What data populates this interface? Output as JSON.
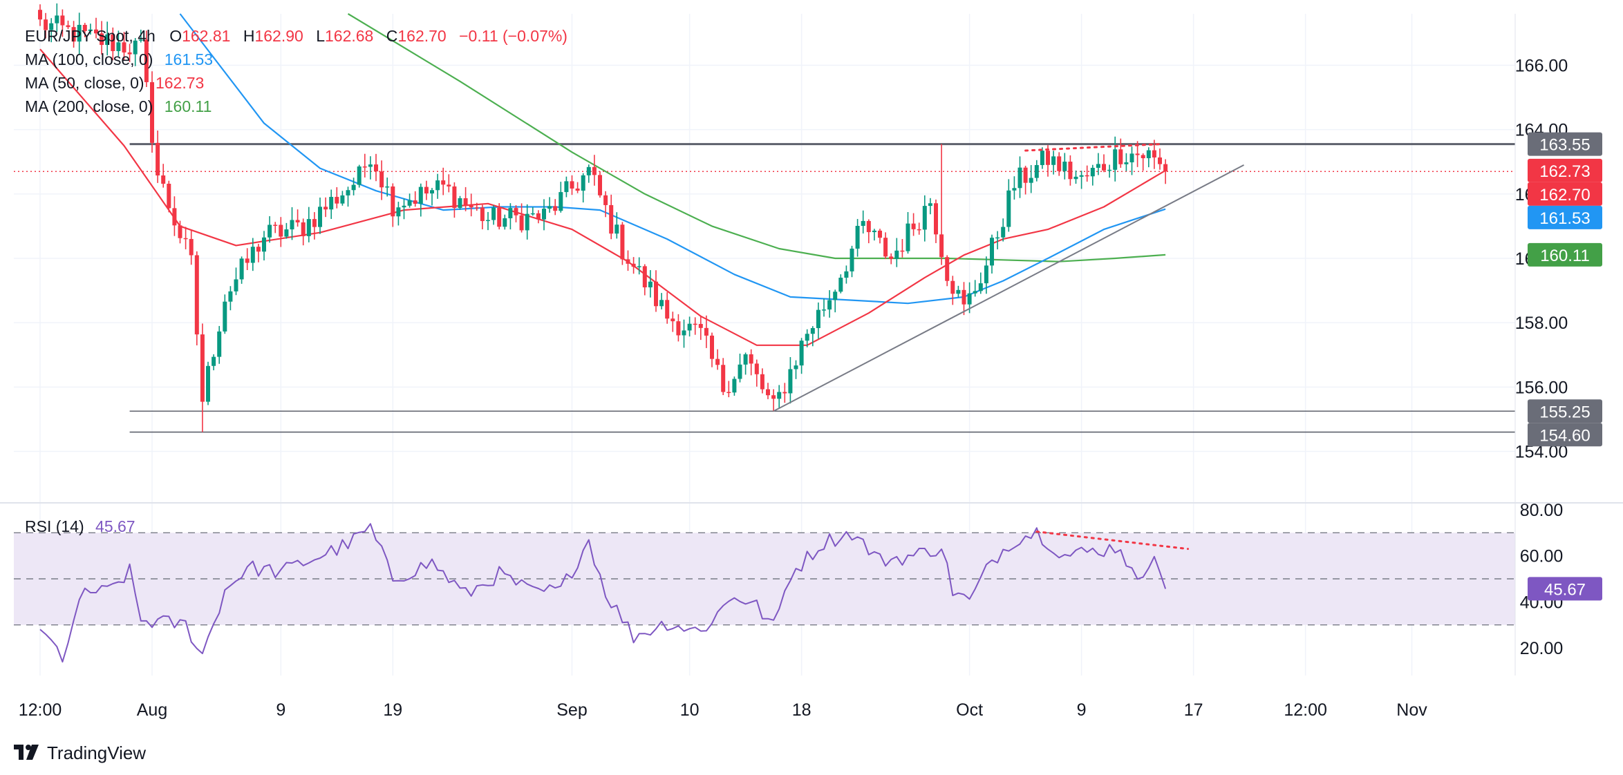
{
  "header": {
    "symbol": "EUR/JPY Spot, 4h",
    "o_label": "O",
    "o_value": "162.81",
    "h_label": "H",
    "h_value": "162.90",
    "l_label": "L",
    "l_value": "162.68",
    "c_label": "C",
    "c_value": "162.70",
    "change": "−0.11 (−0.07%)"
  },
  "legend": {
    "ma100_label": "MA (100, close, 0)",
    "ma100_value": "161.53",
    "ma50_label": "MA (50, close, 0)",
    "ma50_value": "162.73",
    "ma200_label": "MA (200, close, 0)",
    "ma200_value": "160.11",
    "rsi_label": "RSI (14)",
    "rsi_value": "45.67"
  },
  "colors": {
    "up": "#089981",
    "down": "#f23645",
    "ma50": "#f23645",
    "ma100": "#2196f3",
    "ma200": "#4caf50",
    "rsi": "#7e57c2",
    "rsi_band": "#ede7f6",
    "level": "#5d606b",
    "badge_gray": "#6a6d78",
    "badge_red": "#f23645",
    "badge_blue": "#2196f3",
    "badge_green": "#43a047",
    "badge_purple": "#7e57c2"
  },
  "price_badges": [
    {
      "value": "163.55",
      "color": "#6a6d78"
    },
    {
      "value": "162.73",
      "color": "#f23645"
    },
    {
      "value": "162.70",
      "color": "#f23645"
    },
    {
      "value": "161.53",
      "color": "#2196f3"
    },
    {
      "value": "160.11",
      "color": "#43a047"
    },
    {
      "value": "155.25",
      "color": "#6a6d78"
    },
    {
      "value": "154.60",
      "color": "#6a6d78"
    }
  ],
  "rsi_badge": {
    "value": "45.67",
    "color": "#7e57c2"
  },
  "brand": {
    "name": "TradingView",
    "icon": "tradingview-logo-icon"
  },
  "chart_data": {
    "type": "candlestick",
    "title": "EUR/JPY Spot, 4h",
    "x_ticks": [
      {
        "label": "12:00",
        "idx": 0
      },
      {
        "label": "Aug",
        "idx": 20
      },
      {
        "label": "9",
        "idx": 43
      },
      {
        "label": "19",
        "idx": 63
      },
      {
        "label": "Sep",
        "idx": 95
      },
      {
        "label": "10",
        "idx": 116
      },
      {
        "label": "18",
        "idx": 136
      },
      {
        "label": "Oct",
        "idx": 166
      },
      {
        "label": "9",
        "idx": 186
      },
      {
        "label": "17",
        "idx": 206
      },
      {
        "label": "12:00",
        "idx": 226
      },
      {
        "label": "Nov",
        "idx": 245
      }
    ],
    "y_ticks": [
      "166.00",
      "164.00",
      "162.00",
      "160.00",
      "158.00",
      "156.00",
      "154.00"
    ],
    "ylim": [
      152.4,
      167.6
    ],
    "rsi_ticks": [
      "80.00",
      "60.00",
      "40.00",
      "20.00"
    ],
    "rsi_ylim": [
      8,
      80
    ],
    "rsi_levels": [
      30,
      50,
      70
    ],
    "last_index": 201,
    "anchors": [
      {
        "i": 0,
        "p": 167.3
      },
      {
        "i": 10,
        "p": 166.8
      },
      {
        "i": 18,
        "p": 166.5
      },
      {
        "i": 21,
        "p": 162.6
      },
      {
        "i": 27,
        "p": 159.8
      },
      {
        "i": 29,
        "p": 155.6
      },
      {
        "i": 33,
        "p": 158.8
      },
      {
        "i": 40,
        "p": 160.7
      },
      {
        "i": 47,
        "p": 161.0
      },
      {
        "i": 57,
        "p": 162.5
      },
      {
        "i": 59,
        "p": 163.3
      },
      {
        "i": 63,
        "p": 161.7
      },
      {
        "i": 72,
        "p": 162.2
      },
      {
        "i": 80,
        "p": 161.2
      },
      {
        "i": 90,
        "p": 161.3
      },
      {
        "i": 98,
        "p": 162.7
      },
      {
        "i": 104,
        "p": 160.3
      },
      {
        "i": 112,
        "p": 158.2
      },
      {
        "i": 118,
        "p": 157.6
      },
      {
        "i": 122,
        "p": 156.0
      },
      {
        "i": 126,
        "p": 156.9
      },
      {
        "i": 131,
        "p": 155.3
      },
      {
        "i": 137,
        "p": 157.7
      },
      {
        "i": 141,
        "p": 158.8
      },
      {
        "i": 147,
        "p": 161.0
      },
      {
        "i": 152,
        "p": 160.0
      },
      {
        "i": 159,
        "p": 161.8
      },
      {
        "i": 162,
        "p": 159.6
      },
      {
        "i": 165,
        "p": 158.4
      },
      {
        "i": 169,
        "p": 159.8
      },
      {
        "i": 174,
        "p": 162.3
      },
      {
        "i": 180,
        "p": 163.1
      },
      {
        "i": 186,
        "p": 162.4
      },
      {
        "i": 193,
        "p": 163.3
      },
      {
        "i": 198,
        "p": 163.2
      },
      {
        "i": 201,
        "p": 162.7
      }
    ],
    "spikes": [
      {
        "i": 161,
        "high": 163.55
      },
      {
        "i": 29,
        "low": 154.6
      },
      {
        "i": 131,
        "low": 155.25
      }
    ],
    "levels": [
      163.55,
      155.25,
      154.6
    ],
    "last_price": 162.7,
    "trendline": {
      "i1": 131,
      "p1": 155.25,
      "i2": 215,
      "p2": 162.9
    },
    "price_divergence": {
      "i1": 176,
      "p1": 163.35,
      "i2": 200,
      "p2": 163.55
    },
    "rsi_divergence": {
      "i1": 178,
      "v1": 70.5,
      "i2": 205,
      "v2": 63
    },
    "ma50": [
      [
        0,
        166.5
      ],
      [
        15,
        163.5
      ],
      [
        25,
        161.0
      ],
      [
        35,
        160.4
      ],
      [
        50,
        160.8
      ],
      [
        65,
        161.5
      ],
      [
        80,
        161.7
      ],
      [
        95,
        160.9
      ],
      [
        105,
        159.9
      ],
      [
        118,
        158.2
      ],
      [
        128,
        157.3
      ],
      [
        137,
        157.3
      ],
      [
        148,
        158.3
      ],
      [
        158,
        159.4
      ],
      [
        165,
        160.1
      ],
      [
        172,
        160.6
      ],
      [
        180,
        160.9
      ],
      [
        190,
        161.6
      ],
      [
        201,
        162.73
      ]
    ],
    "ma100": [
      [
        25,
        167.6
      ],
      [
        40,
        164.2
      ],
      [
        50,
        162.8
      ],
      [
        60,
        162.1
      ],
      [
        72,
        161.5
      ],
      [
        82,
        161.6
      ],
      [
        92,
        161.6
      ],
      [
        100,
        161.5
      ],
      [
        112,
        160.6
      ],
      [
        124,
        159.5
      ],
      [
        134,
        158.8
      ],
      [
        145,
        158.7
      ],
      [
        155,
        158.6
      ],
      [
        165,
        158.8
      ],
      [
        172,
        159.3
      ],
      [
        180,
        160.0
      ],
      [
        190,
        160.9
      ],
      [
        201,
        161.53
      ]
    ],
    "ma200": [
      [
        55,
        167.6
      ],
      [
        75,
        165.5
      ],
      [
        95,
        163.3
      ],
      [
        108,
        162.0
      ],
      [
        120,
        161.0
      ],
      [
        132,
        160.3
      ],
      [
        142,
        160.0
      ],
      [
        152,
        160.0
      ],
      [
        162,
        160.0
      ],
      [
        172,
        159.95
      ],
      [
        182,
        159.9
      ],
      [
        192,
        160.0
      ],
      [
        201,
        160.11
      ]
    ],
    "rsi_anchors": [
      {
        "i": 0,
        "v": 28
      },
      {
        "i": 4,
        "v": 16
      },
      {
        "i": 8,
        "v": 45
      },
      {
        "i": 12,
        "v": 44
      },
      {
        "i": 16,
        "v": 53
      },
      {
        "i": 18,
        "v": 32
      },
      {
        "i": 22,
        "v": 31
      },
      {
        "i": 26,
        "v": 30
      },
      {
        "i": 29,
        "v": 17
      },
      {
        "i": 33,
        "v": 45
      },
      {
        "i": 37,
        "v": 55
      },
      {
        "i": 43,
        "v": 53
      },
      {
        "i": 50,
        "v": 60
      },
      {
        "i": 55,
        "v": 65
      },
      {
        "i": 59,
        "v": 72
      },
      {
        "i": 63,
        "v": 50
      },
      {
        "i": 70,
        "v": 57
      },
      {
        "i": 76,
        "v": 43
      },
      {
        "i": 82,
        "v": 52
      },
      {
        "i": 88,
        "v": 44
      },
      {
        "i": 93,
        "v": 45
      },
      {
        "i": 98,
        "v": 67
      },
      {
        "i": 101,
        "v": 44
      },
      {
        "i": 106,
        "v": 25
      },
      {
        "i": 112,
        "v": 31
      },
      {
        "i": 118,
        "v": 27
      },
      {
        "i": 124,
        "v": 43
      },
      {
        "i": 128,
        "v": 38
      },
      {
        "i": 131,
        "v": 29
      },
      {
        "i": 134,
        "v": 52
      },
      {
        "i": 140,
        "v": 66
      },
      {
        "i": 145,
        "v": 70
      },
      {
        "i": 150,
        "v": 58
      },
      {
        "i": 156,
        "v": 60
      },
      {
        "i": 161,
        "v": 64
      },
      {
        "i": 163,
        "v": 45
      },
      {
        "i": 166,
        "v": 40
      },
      {
        "i": 170,
        "v": 58
      },
      {
        "i": 174,
        "v": 67
      },
      {
        "i": 178,
        "v": 70.5
      },
      {
        "i": 183,
        "v": 60
      },
      {
        "i": 188,
        "v": 62
      },
      {
        "i": 193,
        "v": 64
      },
      {
        "i": 196,
        "v": 47
      },
      {
        "i": 199,
        "v": 63
      },
      {
        "i": 201,
        "v": 45.67
      }
    ]
  }
}
